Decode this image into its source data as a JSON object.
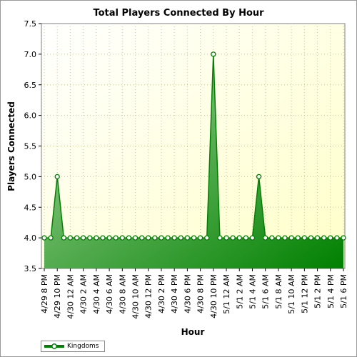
{
  "chart_data": {
    "type": "area",
    "title": "Total Players Connected By Hour",
    "xlabel": "Hour",
    "ylabel": "Players Connected",
    "ylim": [
      3.5,
      7.5
    ],
    "yticks": [
      "3.5",
      "4.0",
      "4.5",
      "5.0",
      "5.5",
      "6.0",
      "6.5",
      "7.0",
      "7.5"
    ],
    "x_tick_labels": [
      "4/29 8 PM",
      "4/29 10 PM",
      "4/30 12 AM",
      "4/30 2 AM",
      "4/30 4 AM",
      "4/30 6 AM",
      "4/30 8 AM",
      "4/30 10 AM",
      "4/30 12 PM",
      "4/30 2 PM",
      "4/30 4 PM",
      "4/30 6 PM",
      "4/30 8 PM",
      "4/30 10 PM",
      "5/1 12 AM",
      "5/1 2 AM",
      "5/1 4 AM",
      "5/1 6 AM",
      "5/1 8 AM",
      "5/1 10 AM",
      "5/1 12 PM",
      "5/1 2 PM",
      "5/1 4 PM",
      "5/1 6 PM"
    ],
    "grid": true,
    "legend_position": "bottom-left",
    "series": [
      {
        "name": "Kingdoms",
        "color": "#008000",
        "values": [
          4,
          4,
          5,
          4,
          4,
          4,
          4,
          4,
          4,
          4,
          4,
          4,
          4,
          4,
          4,
          4,
          4,
          4,
          4,
          4,
          4,
          4,
          4,
          4,
          4,
          4,
          7,
          4,
          4,
          4,
          4,
          4,
          4,
          5,
          4,
          4,
          4,
          4,
          4,
          4,
          4,
          4,
          4,
          4,
          4,
          4,
          4
        ]
      }
    ]
  }
}
